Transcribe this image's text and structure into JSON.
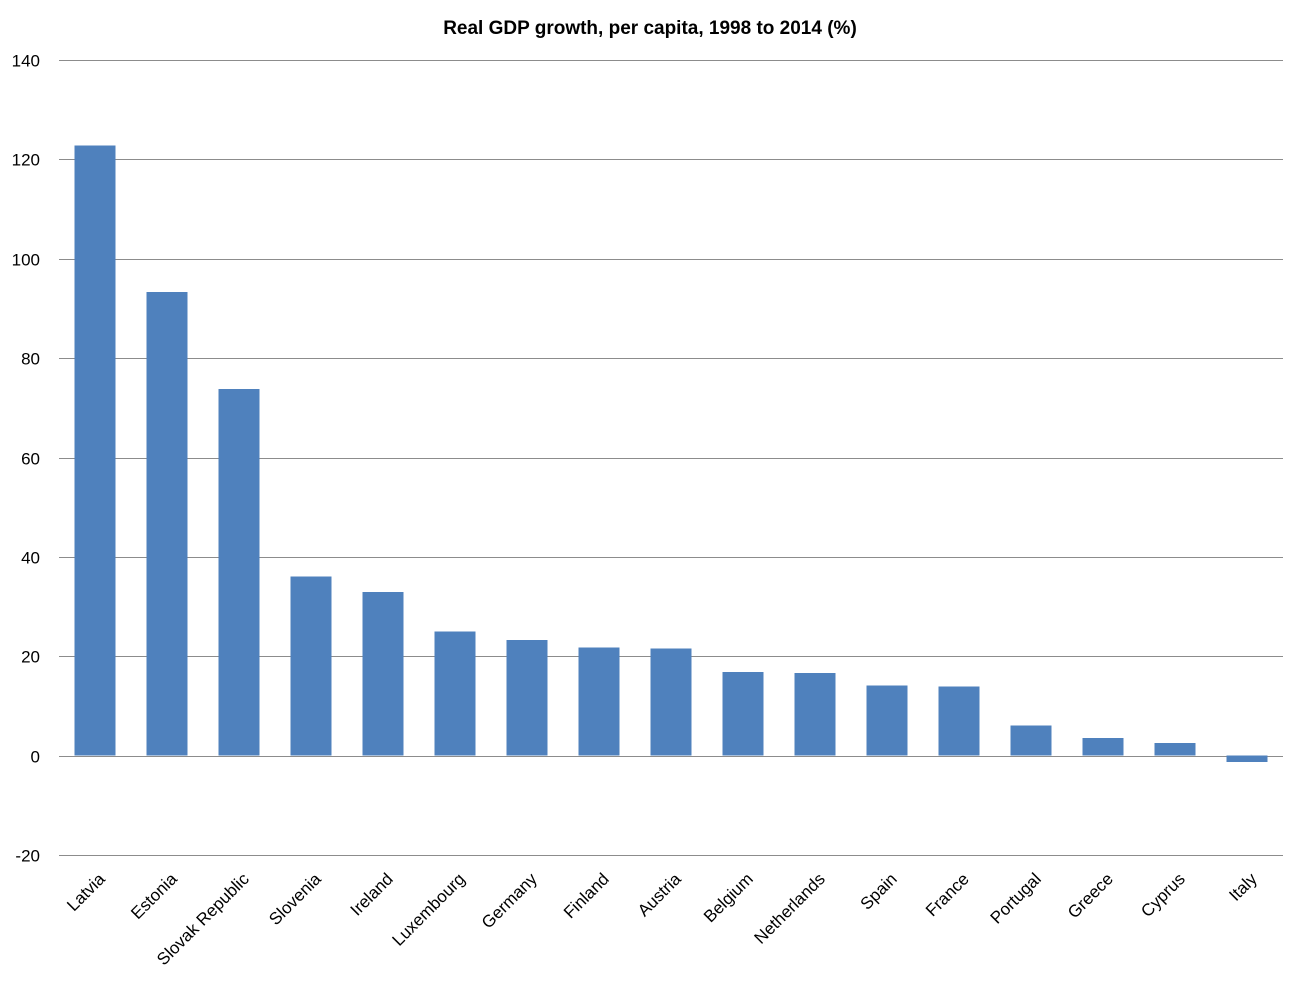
{
  "chart_data": {
    "type": "bar",
    "title": "Real GDP growth, per capita, 1998 to 2014  (%)",
    "xlabel": "",
    "ylabel": "",
    "ylim": [
      -20,
      140
    ],
    "yticks": [
      140,
      120,
      100,
      80,
      60,
      40,
      20,
      0,
      -20
    ],
    "grid": true,
    "legend": "none",
    "bar_color": "#4f81bd",
    "categories": [
      "Latvia",
      "Estonia",
      "Slovak Republic",
      "Slovenia",
      "Ireland",
      "Luxembourg",
      "Germany",
      "Finland",
      "Austria",
      "Belgium",
      "Netherlands",
      "Spain",
      "France",
      "Portugal",
      "Greece",
      "Cyprus",
      "Italy"
    ],
    "values": [
      122.8,
      93.3,
      73.8,
      36.1,
      32.9,
      25.0,
      23.3,
      21.8,
      21.6,
      16.8,
      16.6,
      14.1,
      13.9,
      6.1,
      3.5,
      2.5,
      -1.3
    ]
  }
}
